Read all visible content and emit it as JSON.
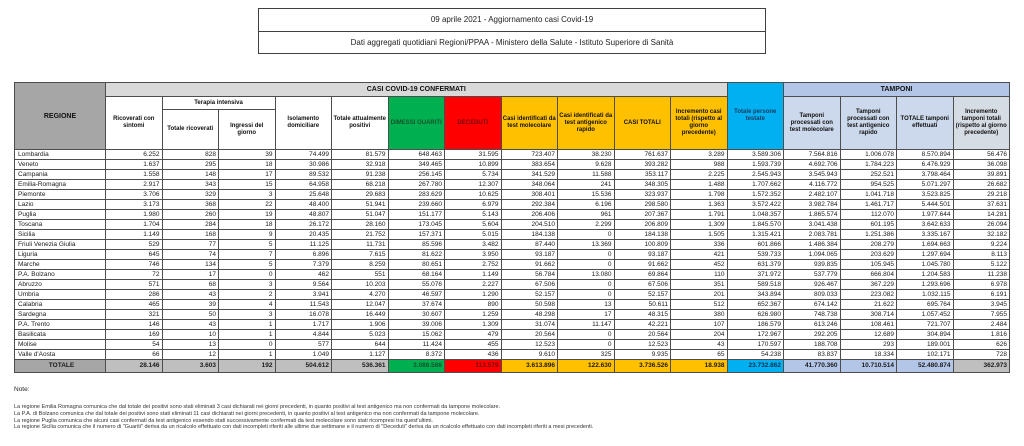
{
  "title": {
    "line1": "09 aprile 2021 - Aggiornamento casi Covid-19",
    "line2": "Dati aggregati quotidiani Regioni/PPAA - Ministero della Salute - Istituto Superiore di Sanità"
  },
  "colors": {
    "header_gray": "#a6a6a6",
    "band_gray": "#d9d9d9",
    "green": "#00b050",
    "red": "#ff0000",
    "gold": "#ffc000",
    "cyan": "#00b0f0",
    "light_blue": "#b4c6e7",
    "total_gray": "#bfbfbf"
  },
  "table": {
    "region_header": "REGIONE",
    "groups": {
      "confirmed": "CASI COVID-19 CONFERMATI",
      "terapia": "Terapia intensiva",
      "testate": "Totale persone testate",
      "tamponi": "TAMPONI"
    },
    "columns": [
      "Ricoverati con sintomi",
      "Totale ricoverati",
      "Ingressi del giorno",
      "Isolamento domiciliare",
      "Totale attualmente positivi",
      "DIMESSI GUARITI",
      "DECEDUTI",
      "Casi identificati da test molecolare",
      "Casi identificati da test antigenico rapido",
      "CASI TOTALI",
      "Incremento casi totali (rispetto al giorno precedente)",
      "Tamponi processati con test molecolare",
      "Tamponi processati con test antigenico rapido",
      "TOTALE tamponi effettuati",
      "Incremento tamponi totali (rispetto al giorno precedente)"
    ],
    "rows": [
      {
        "region": "Lombardia",
        "values": [
          "6.252",
          "828",
          "39",
          "74.499",
          "81.579",
          "648.463",
          "31.595",
          "723.407",
          "38.230",
          "761.637",
          "3.289",
          "3.589.306",
          "7.564.816",
          "1.006.078",
          "8.570.894",
          "56.476"
        ]
      },
      {
        "region": "Veneto",
        "values": [
          "1.637",
          "295",
          "18",
          "30.986",
          "32.918",
          "349.465",
          "10.899",
          "383.654",
          "9.628",
          "393.282",
          "988",
          "1.593.739",
          "4.692.706",
          "1.784.223",
          "6.476.929",
          "36.098"
        ]
      },
      {
        "region": "Campania",
        "values": [
          "1.558",
          "148",
          "17",
          "89.532",
          "91.238",
          "256.145",
          "5.734",
          "341.529",
          "11.588",
          "353.117",
          "2.225",
          "2.545.943",
          "3.545.943",
          "252.521",
          "3.798.464",
          "39.891"
        ]
      },
      {
        "region": "Emilia-Romagna",
        "values": [
          "2.917",
          "343",
          "15",
          "64.958",
          "68.218",
          "267.780",
          "12.307",
          "348.064",
          "241",
          "348.305",
          "1.488",
          "1.707.662",
          "4.116.772",
          "954.525",
          "5.071.297",
          "26.682"
        ]
      },
      {
        "region": "Piemonte",
        "values": [
          "3.706",
          "329",
          "3",
          "25.648",
          "29.683",
          "283.629",
          "10.625",
          "308.401",
          "15.536",
          "323.937",
          "1.798",
          "1.572.352",
          "2.482.107",
          "1.041.718",
          "3.523.825",
          "29.218"
        ]
      },
      {
        "region": "Lazio",
        "values": [
          "3.173",
          "368",
          "22",
          "48.400",
          "51.941",
          "239.660",
          "6.979",
          "292.384",
          "6.196",
          "298.580",
          "1.363",
          "3.572.422",
          "3.982.784",
          "1.461.717",
          "5.444.501",
          "37.631"
        ]
      },
      {
        "region": "Puglia",
        "values": [
          "1.980",
          "260",
          "19",
          "48.807",
          "51.047",
          "151.177",
          "5.143",
          "206.406",
          "961",
          "207.367",
          "1.791",
          "1.048.357",
          "1.865.574",
          "112.070",
          "1.977.644",
          "14.281"
        ]
      },
      {
        "region": "Toscana",
        "values": [
          "1.704",
          "284",
          "18",
          "26.172",
          "28.160",
          "173.045",
          "5.604",
          "204.510",
          "2.299",
          "206.809",
          "1.309",
          "1.845.570",
          "3.041.438",
          "601.195",
          "3.642.633",
          "26.094"
        ]
      },
      {
        "region": "Sicilia",
        "values": [
          "1.149",
          "168",
          "9",
          "20.435",
          "21.752",
          "157.371",
          "5.015",
          "184.138",
          "0",
          "184.138",
          "1.505",
          "1.315.421",
          "2.083.781",
          "1.251.386",
          "3.335.167",
          "32.182"
        ]
      },
      {
        "region": "Friuli Venezia Giulia",
        "values": [
          "529",
          "77",
          "5",
          "11.125",
          "11.731",
          "85.596",
          "3.482",
          "87.440",
          "13.369",
          "100.809",
          "336",
          "601.866",
          "1.486.384",
          "208.279",
          "1.694.663",
          "9.224"
        ]
      },
      {
        "region": "Liguria",
        "values": [
          "645",
          "74",
          "7",
          "6.896",
          "7.615",
          "81.622",
          "3.950",
          "93.187",
          "0",
          "93.187",
          "421",
          "539.733",
          "1.094.065",
          "203.629",
          "1.297.694",
          "8.113"
        ]
      },
      {
        "region": "Marche",
        "values": [
          "746",
          "134",
          "5",
          "7.379",
          "8.259",
          "80.651",
          "2.752",
          "91.662",
          "0",
          "91.662",
          "452",
          "631.379",
          "939.835",
          "105.945",
          "1.045.780",
          "5.122"
        ]
      },
      {
        "region": "P.A. Bolzano",
        "values": [
          "72",
          "17",
          "0",
          "462",
          "551",
          "68.164",
          "1.149",
          "56.784",
          "13.080",
          "69.864",
          "110",
          "371.972",
          "537.779",
          "666.804",
          "1.204.583",
          "11.238"
        ]
      },
      {
        "region": "Abruzzo",
        "values": [
          "571",
          "68",
          "3",
          "9.564",
          "10.203",
          "55.076",
          "2.227",
          "67.506",
          "0",
          "67.506",
          "351",
          "589.518",
          "926.467",
          "367.229",
          "1.293.696",
          "6.978"
        ]
      },
      {
        "region": "Umbria",
        "values": [
          "286",
          "43",
          "2",
          "3.941",
          "4.270",
          "46.597",
          "1.290",
          "52.157",
          "0",
          "52.157",
          "201",
          "343.894",
          "809.033",
          "223.082",
          "1.032.115",
          "6.191"
        ]
      },
      {
        "region": "Calabria",
        "values": [
          "465",
          "39",
          "4",
          "11.543",
          "12.047",
          "37.674",
          "890",
          "50.598",
          "13",
          "50.611",
          "512",
          "652.367",
          "674.142",
          "21.622",
          "695.764",
          "3.945"
        ]
      },
      {
        "region": "Sardegna",
        "values": [
          "321",
          "50",
          "3",
          "16.078",
          "16.449",
          "30.607",
          "1.259",
          "48.298",
          "17",
          "48.315",
          "380",
          "626.980",
          "748.738",
          "308.714",
          "1.057.452",
          "7.955"
        ]
      },
      {
        "region": "P.A. Trento",
        "values": [
          "146",
          "43",
          "1",
          "1.717",
          "1.906",
          "39.006",
          "1.309",
          "31.074",
          "11.147",
          "42.221",
          "107",
          "186.579",
          "613.246",
          "108.461",
          "721.707",
          "2.484"
        ]
      },
      {
        "region": "Basilicata",
        "values": [
          "169",
          "10",
          "1",
          "4.844",
          "5.023",
          "15.062",
          "479",
          "20.564",
          "0",
          "20.564",
          "204",
          "172.967",
          "292.205",
          "12.689",
          "304.894",
          "1.816"
        ]
      },
      {
        "region": "Molise",
        "values": [
          "54",
          "13",
          "0",
          "577",
          "644",
          "11.424",
          "455",
          "12.523",
          "0",
          "12.523",
          "43",
          "170.597",
          "188.708",
          "293",
          "189.001",
          "626"
        ]
      },
      {
        "region": "Valle d'Aosta",
        "values": [
          "66",
          "12",
          "1",
          "1.049",
          "1.127",
          "8.372",
          "436",
          "9.610",
          "325",
          "9.935",
          "65",
          "54.238",
          "83.837",
          "18.334",
          "102.171",
          "728"
        ]
      }
    ],
    "total": {
      "label": "TOTALE",
      "values": [
        "28.146",
        "3.603",
        "192",
        "504.612",
        "536.361",
        "3.086.586",
        "113.579",
        "3.613.896",
        "122.630",
        "3.736.526",
        "18.938",
        "23.732.862",
        "41.770.360",
        "10.710.514",
        "52.480.874",
        "362.973"
      ]
    }
  },
  "notes": {
    "label": "Note:",
    "lines": [
      "La regione Emilia Romagna comunica che dal totale dei positivi sono stati eliminati 3 casi dichiarati nei giorni precedenti, in quanto positivi al test antigenico ma non confermati da tampone molecolare.",
      "La P.A. di Bolzano comunica che dal totale dei positivi sono stati eliminati 11 casi dichiarati nei giorni precedenti, in quanto positivi al test antigenico ma non confermati da tampone molecolare.",
      "La regione Puglia comunica che alcuni casi confermati da test antigenico essendo stati successivamente confermati da test molecolare sono stati ricompresi tra quest'ultimi.",
      "La regione Sicilia comunica che il numero di \"Guariti\" deriva da un ricalcolo effettuato con dati incompleti riferiti alle ultime due settimane e il numero di \"Deceduti\" deriva da un ricalcolo effettuato con dati incompleti riferiti a mesi precedenti."
    ]
  }
}
